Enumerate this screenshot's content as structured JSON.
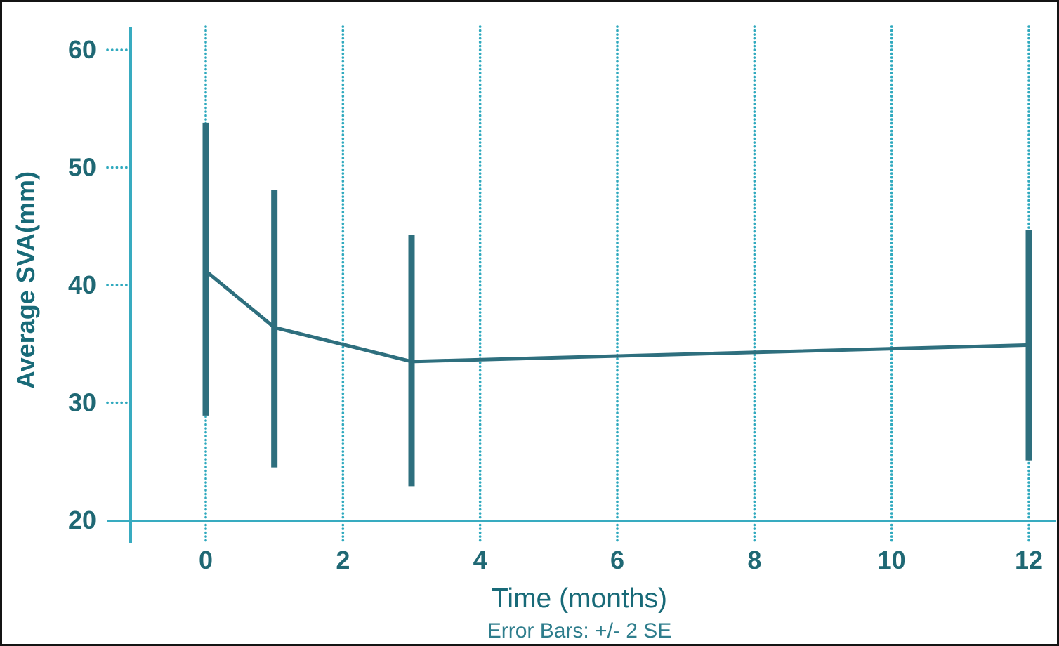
{
  "chart_data": {
    "type": "line",
    "title": "",
    "xlabel": "Time (months)",
    "ylabel": "Average SVA(mm)",
    "annotation": "Error Bars: +/- 2 SE",
    "x": [
      0,
      1,
      3,
      12
    ],
    "series": [
      {
        "name": "Average SVA",
        "mean": [
          41.2,
          36.4,
          33.5,
          34.9
        ],
        "error_low": [
          28.9,
          24.5,
          22.9,
          25.1
        ],
        "error_high": [
          53.8,
          48.1,
          44.3,
          44.7
        ]
      }
    ],
    "x_ticks": [
      0,
      2,
      4,
      6,
      8,
      10,
      12
    ],
    "x_tick_labels": [
      "0",
      "2",
      "4",
      "6",
      "8",
      "10",
      "12"
    ],
    "y_ticks": [
      20,
      30,
      40,
      50,
      60
    ],
    "y_tick_labels": [
      "20",
      "30",
      "40",
      "50",
      "60"
    ],
    "xlim": [
      -1.4,
      12.5
    ],
    "ylim": [
      20,
      62
    ],
    "grid": {
      "vertical_dotted_at_x_ticks": true,
      "horizontal": false
    },
    "legend": "none",
    "colors": {
      "axis": "#38abc0",
      "grid_dots": "#2fa9be",
      "series": "#2e6f7e",
      "tick_text": "#1f6874",
      "title_text": "#186a78",
      "caption_text": "#2e7d8c",
      "border": "#141414",
      "background": "#ffffff"
    }
  }
}
